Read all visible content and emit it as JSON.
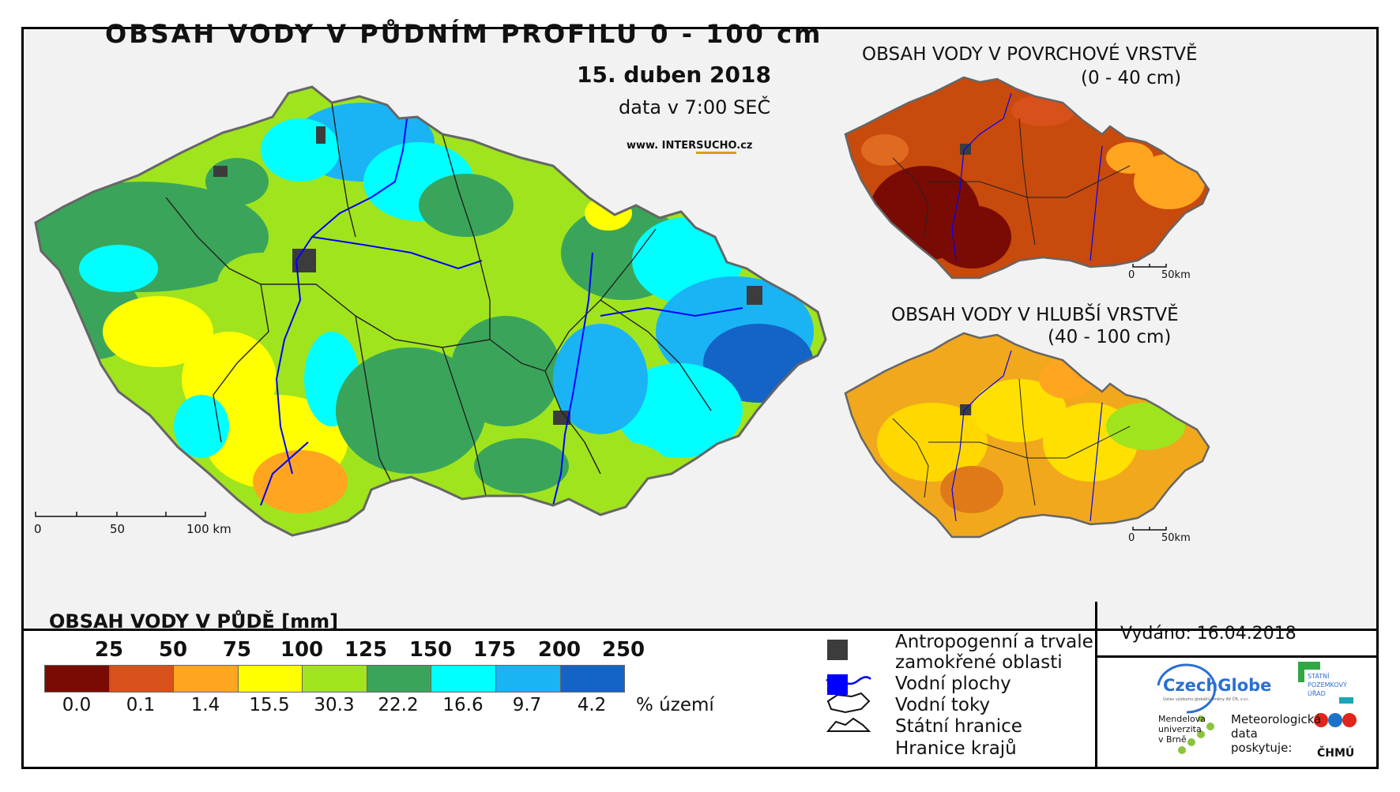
{
  "main_map": {
    "title": "OBSAH VODY V PŮDNÍM PROFILU 0 - 100 cm",
    "date": "15. duben 2018",
    "time": "data v 7:00 SEČ",
    "website_prefix": "www. INTER",
    "website_highlight": "SUCHO",
    "website_suffix": ".cz",
    "scale": {
      "ticks": [
        "0",
        "50",
        "100 km"
      ]
    }
  },
  "inset_surface": {
    "title_line1": "OBSAH VODY V POVRCHOVÉ VRSTVĚ",
    "title_line2": "(0 - 40 cm)",
    "scale": {
      "ticks": [
        "0",
        "50km"
      ]
    },
    "dominant_color": "#c84a0c"
  },
  "inset_deep": {
    "title_line1": "OBSAH VODY V HLUBŠÍ VRSTVĚ",
    "title_line2": "(40 - 100 cm)",
    "scale": {
      "ticks": [
        "0",
        "50km"
      ]
    },
    "dominant_color": "#f2a81c"
  },
  "legend": {
    "title": "OBSAH VODY V PŮDĚ [mm]",
    "thresholds": [
      "25",
      "50",
      "75",
      "100",
      "125",
      "150",
      "175",
      "200",
      "250"
    ],
    "bins": [
      {
        "color": "#7a0b04",
        "percent": "0.0"
      },
      {
        "color": "#d8501a",
        "percent": "0.1"
      },
      {
        "color": "#ffa520",
        "percent": "1.4"
      },
      {
        "color": "#ffff00",
        "percent": "15.5"
      },
      {
        "color": "#a0e41e",
        "percent": "30.3"
      },
      {
        "color": "#3aa55a",
        "percent": "22.2"
      },
      {
        "color": "#00ffff",
        "percent": "16.6"
      },
      {
        "color": "#1ab4f5",
        "percent": "9.7"
      },
      {
        "color": "#1464c8",
        "percent": "4.2"
      }
    ],
    "percent_unit": "% území"
  },
  "symbol_legend": {
    "anthropogenic_line1": "Antropogenní a trvale",
    "anthropogenic_line2": "zamokřené oblasti",
    "anthropogenic_color": "#3c3c3c",
    "water_bodies": "Vodní plochy",
    "water_bodies_color": "#0000ff",
    "rivers": "Vodní toky",
    "rivers_color": "#0000ff",
    "state_border": "Státní hranice",
    "region_border": "Hranice krajů"
  },
  "footer": {
    "issued": "Vydáno: 16.04.2018",
    "czechglobe": "CzechGlobe",
    "czechglobe_sub": "Ústav výzkumu globální změny AV ČR, v.v.i.",
    "spu_line1": "STÁTNÍ",
    "spu_line2": "POZEMKOVÝ",
    "spu_line3": "ÚŘAD",
    "mendel_line1": "Mendelova",
    "mendel_line2": "univerzita",
    "mendel_line3": "v Brně",
    "meteo_line1": "Meteorologická",
    "meteo_line2": "data",
    "meteo_line3": "poskytuje:",
    "chmu": "ČHMÚ"
  }
}
